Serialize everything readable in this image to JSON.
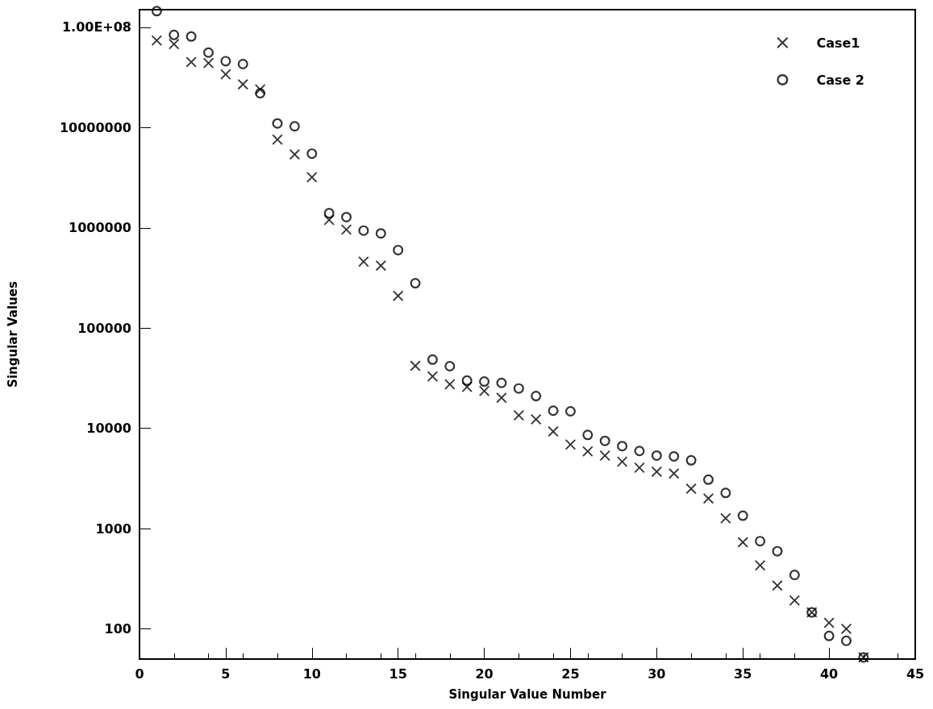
{
  "chart_data": {
    "type": "scatter",
    "xlabel": "Singular Value Number",
    "ylabel": "Singular Values",
    "log": "y",
    "grid": false,
    "legend": "top right",
    "x": [
      1,
      2,
      3,
      4,
      5,
      6,
      7,
      8,
      9,
      10,
      11,
      12,
      13,
      14,
      15,
      16,
      17,
      18,
      19,
      20,
      21,
      22,
      23,
      24,
      25,
      26,
      27,
      28,
      29,
      30,
      31,
      32,
      33,
      34,
      35,
      36,
      37,
      38,
      39,
      40,
      41,
      42
    ],
    "xlim": [
      0,
      45
    ],
    "xticks": [
      0,
      5,
      10,
      15,
      20,
      25,
      30,
      35,
      40,
      45
    ],
    "ylim": [
      50,
      150000000
    ],
    "yticks": [
      100,
      1000,
      10000,
      100000,
      1000000,
      10000000,
      {
        "value": 100000000,
        "label": "1.00E+08"
      }
    ],
    "series": [
      {
        "name": "Case1",
        "color": "#000000",
        "marker": "cross",
        "values": [
          74000000,
          68000000,
          45000000,
          44000000,
          34000000,
          27000000,
          24000000,
          7600000,
          5400000,
          3200000,
          1200000,
          960000,
          460000,
          420000,
          210000,
          42000,
          33000,
          27500,
          25900,
          23600,
          20200,
          13500,
          12300,
          9300,
          6900,
          5900,
          5350,
          4650,
          4050,
          3700,
          3550,
          2500,
          2000,
          1270,
          730,
          430,
          270,
          192,
          146,
          115,
          100,
          52
        ]
      },
      {
        "name": "Case 2",
        "color": "#000000",
        "marker": "circle",
        "values": [
          145000000,
          84000000,
          81000000,
          56000000,
          46000000,
          43000000,
          22000000,
          11000000,
          10300000,
          5500000,
          1400000,
          1280000,
          940000,
          880000,
          600000,
          280000,
          48500,
          41700,
          30000,
          29300,
          28400,
          25000,
          21000,
          15000,
          14800,
          8600,
          7500,
          6650,
          5950,
          5350,
          5250,
          4800,
          3080,
          2270,
          1345,
          750,
          595,
          345,
          146,
          85,
          76,
          52
        ]
      }
    ]
  }
}
